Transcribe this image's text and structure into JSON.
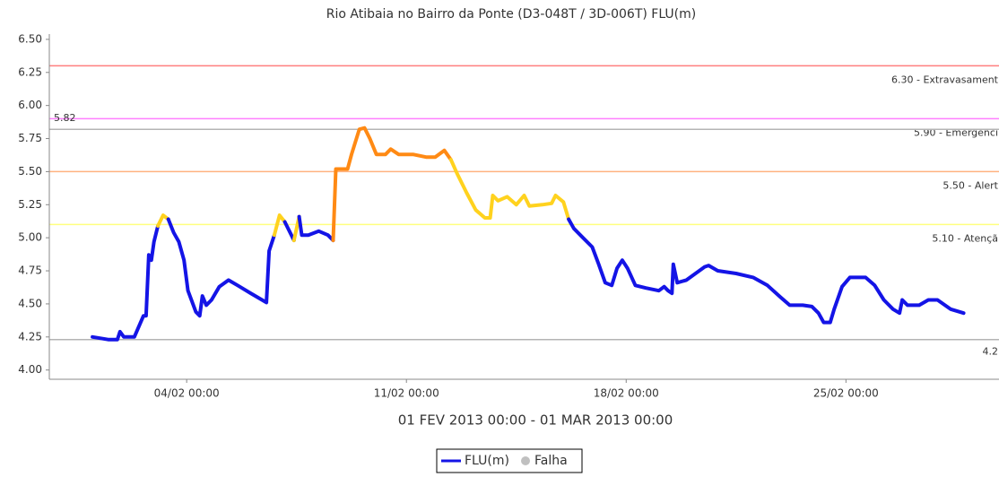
{
  "chart_data": {
    "type": "line",
    "title": "Rio Atibaia no Bairro da Ponte (D3-048T / 3D-006T) FLU(m)",
    "subtitle": "01 FEV 2013 00:00 - 01 MAR 2013 00:00",
    "x": [
      "01/02 00:00",
      "01/02 12:00",
      "01/02 19:00",
      "01/02 21:00",
      "02/02 00:00",
      "02/02 08:00",
      "02/02 15:00",
      "02/02 17:00",
      "02/02 19:00",
      "02/02 21:00",
      "02/02 23:00",
      "03/02 02:00",
      "03/02 06:00",
      "03/02 10:00",
      "03/02 14:00",
      "03/02 18:00",
      "03/02 22:00",
      "04/02 01:00",
      "04/02 07:00",
      "04/02 10:00",
      "04/02 12:00",
      "04/02 15:00",
      "04/02 19:00",
      "05/02 01:00",
      "05/02 08:00",
      "05/02 15:00",
      "06/02 01:00",
      "06/02 13:00",
      "06/02 15:00",
      "06/02 19:00",
      "06/02 23:00",
      "07/02 03:00",
      "07/02 08:00",
      "07/02 10:00",
      "07/02 14:00",
      "07/02 16:00",
      "07/02 21:00",
      "08/02 05:00",
      "08/02 12:00",
      "08/02 16:00",
      "08/02 18:00",
      "09/02 03:00",
      "09/02 06:00",
      "09/02 12:00",
      "09/02 16:00",
      "09/02 20:00",
      "10/02 01:00",
      "10/02 08:00",
      "10/02 12:00",
      "10/02 18:00",
      "11/02 05:00",
      "11/02 15:00",
      "11/02 22:00",
      "12/02 05:00",
      "12/02 10:00",
      "12/02 15:00",
      "12/02 22:00",
      "13/02 05:00",
      "13/02 12:00",
      "13/02 16:00",
      "13/02 18:00",
      "13/02 22:00",
      "14/02 05:00",
      "14/02 12:00",
      "14/02 18:00",
      "14/02 22:00",
      "15/02 08:00",
      "15/02 15:00",
      "15/02 18:00",
      "16/02 00:00",
      "16/02 04:00",
      "16/02 08:00",
      "16/02 15:00",
      "16/02 22:00",
      "17/02 03:00",
      "17/02 08:00",
      "17/02 13:00",
      "17/02 17:00",
      "17/02 21:00",
      "18/02 01:00",
      "18/02 07:00",
      "18/02 15:00",
      "19/02 01:00",
      "19/02 05:00",
      "19/02 08:00",
      "19/02 11:00",
      "19/02 12:00",
      "19/02 15:00",
      "19/02 22:00",
      "20/02 05:00",
      "20/02 12:00",
      "20/02 15:00",
      "20/02 22:00",
      "21/02 12:00",
      "22/02 01:00",
      "22/02 12:00",
      "22/02 22:00",
      "23/02 05:00",
      "23/02 15:00",
      "23/02 22:00",
      "24/02 03:00",
      "24/02 07:00",
      "24/02 12:00",
      "24/02 15:00",
      "24/02 21:00",
      "25/02 03:00",
      "25/02 15:00",
      "25/02 22:00",
      "26/02 05:00",
      "26/02 12:00",
      "26/02 17:00",
      "26/02 19:00",
      "26/02 23:00",
      "27/02 08:00",
      "27/02 15:00",
      "27/02 22:00",
      "28/02 08:00",
      "28/02 18:00"
    ],
    "series": [
      {
        "name": "FLU(m)",
        "color": "#1414e6",
        "values": [
          4.25,
          4.23,
          4.23,
          4.29,
          4.25,
          4.25,
          4.41,
          4.41,
          4.87,
          4.83,
          4.97,
          5.09,
          5.17,
          5.14,
          5.04,
          4.97,
          4.83,
          4.6,
          4.44,
          4.41,
          4.56,
          4.49,
          4.53,
          4.63,
          4.68,
          4.64,
          4.58,
          4.51,
          4.9,
          5.02,
          5.17,
          5.12,
          5.02,
          4.98,
          5.16,
          5.02,
          5.02,
          5.05,
          5.02,
          4.98,
          5.52,
          5.52,
          5.63,
          5.82,
          5.83,
          5.75,
          5.63,
          5.63,
          5.67,
          5.63,
          5.63,
          5.61,
          5.61,
          5.66,
          5.59,
          5.48,
          5.34,
          5.21,
          5.15,
          5.15,
          5.32,
          5.28,
          5.31,
          5.25,
          5.32,
          5.24,
          5.25,
          5.26,
          5.32,
          5.27,
          5.14,
          5.07,
          5.0,
          4.93,
          4.8,
          4.66,
          4.64,
          4.77,
          4.83,
          4.77,
          4.64,
          4.62,
          4.6,
          4.63,
          4.6,
          4.58,
          4.8,
          4.66,
          4.68,
          4.73,
          4.78,
          4.79,
          4.75,
          4.73,
          4.7,
          4.64,
          4.55,
          4.49,
          4.49,
          4.48,
          4.43,
          4.36,
          4.36,
          4.46,
          4.63,
          4.7,
          4.7,
          4.64,
          4.53,
          4.46,
          4.43,
          4.53,
          4.49,
          4.49,
          4.53,
          4.53,
          4.46,
          4.43
        ]
      }
    ],
    "bands": [
      {
        "from": 5.1,
        "color": "#ffd21e"
      },
      {
        "from": 5.5,
        "color": "#ff8a14"
      }
    ],
    "thresholds": [
      {
        "value": 6.3,
        "label": "6.30 - Extravasament",
        "color": "#ff7f7f"
      },
      {
        "value": 5.9,
        "label": "5.90 - Emergenci",
        "color": "#ff7fff"
      },
      {
        "value": 5.5,
        "label": "5.50 - Alert",
        "color": "#ffb27f"
      },
      {
        "value": 5.1,
        "label": "5.10 - Atençã",
        "color": "#ffff7f"
      }
    ],
    "reference_lines": [
      {
        "value": 5.82,
        "label": "5.82",
        "side": "left",
        "color": "#b4b4b4"
      },
      {
        "value": 4.23,
        "label": "4.2",
        "side": "right",
        "color": "#b4b4b4"
      }
    ],
    "xlim": [
      "30/01 15:00",
      "01/03 21:00"
    ],
    "xticks": [
      "04/02 00:00",
      "11/02 00:00",
      "18/02 00:00",
      "25/02 00:00"
    ],
    "ylim": [
      3.93,
      6.54
    ],
    "yticks": [
      {
        "value": 4.0,
        "label": "4.00"
      },
      4.25,
      {
        "value": 4.5,
        "label": "4.50"
      },
      4.75,
      {
        "value": 5.0,
        "label": "5.00"
      },
      5.25,
      {
        "value": 5.5,
        "label": "5.50"
      },
      5.75,
      {
        "value": 6.0,
        "label": "6.00"
      },
      6.25,
      {
        "value": 6.5,
        "label": "6.50"
      }
    ],
    "failure_legend": {
      "name": "Falha",
      "color": "#c0c0c0"
    }
  }
}
